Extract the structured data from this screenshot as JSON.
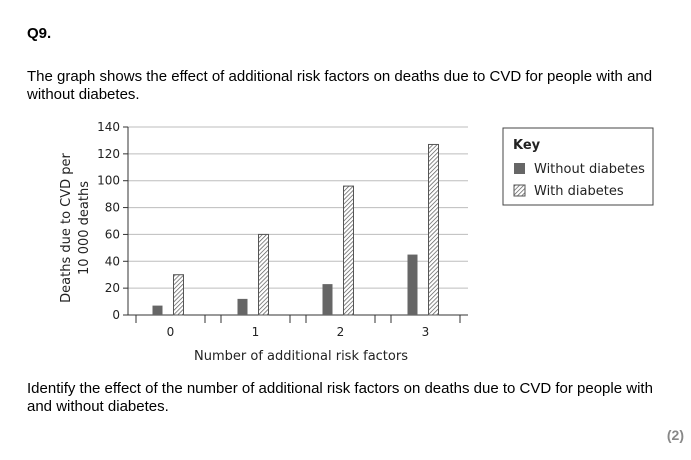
{
  "question": {
    "number": "Q9.",
    "intro": "The graph shows the effect of additional risk factors on deaths due to CVD for people with and without diabetes.",
    "prompt": "Identify the effect of the number of additional risk factors on deaths due to CVD for people with and without diabetes.",
    "marks": "(2)"
  },
  "chart_data": {
    "type": "bar",
    "categories": [
      "0",
      "1",
      "2",
      "3"
    ],
    "series": [
      {
        "name": "Without diabetes",
        "values": [
          7,
          12,
          23,
          45
        ],
        "fill": "solid",
        "color": "#666666"
      },
      {
        "name": "With diabetes",
        "values": [
          30,
          60,
          96,
          127
        ],
        "fill": "hatched",
        "color": "#555555"
      }
    ],
    "xlabel": "Number of additional risk factors",
    "ylabel_line1": "Deaths due to CVD per",
    "ylabel_line2": "10 000 deaths",
    "ylim": [
      0,
      140
    ],
    "yticks": [
      0,
      20,
      40,
      60,
      80,
      100,
      120,
      140
    ],
    "grid": true,
    "legend_title": "Key",
    "legend_position": "right"
  }
}
